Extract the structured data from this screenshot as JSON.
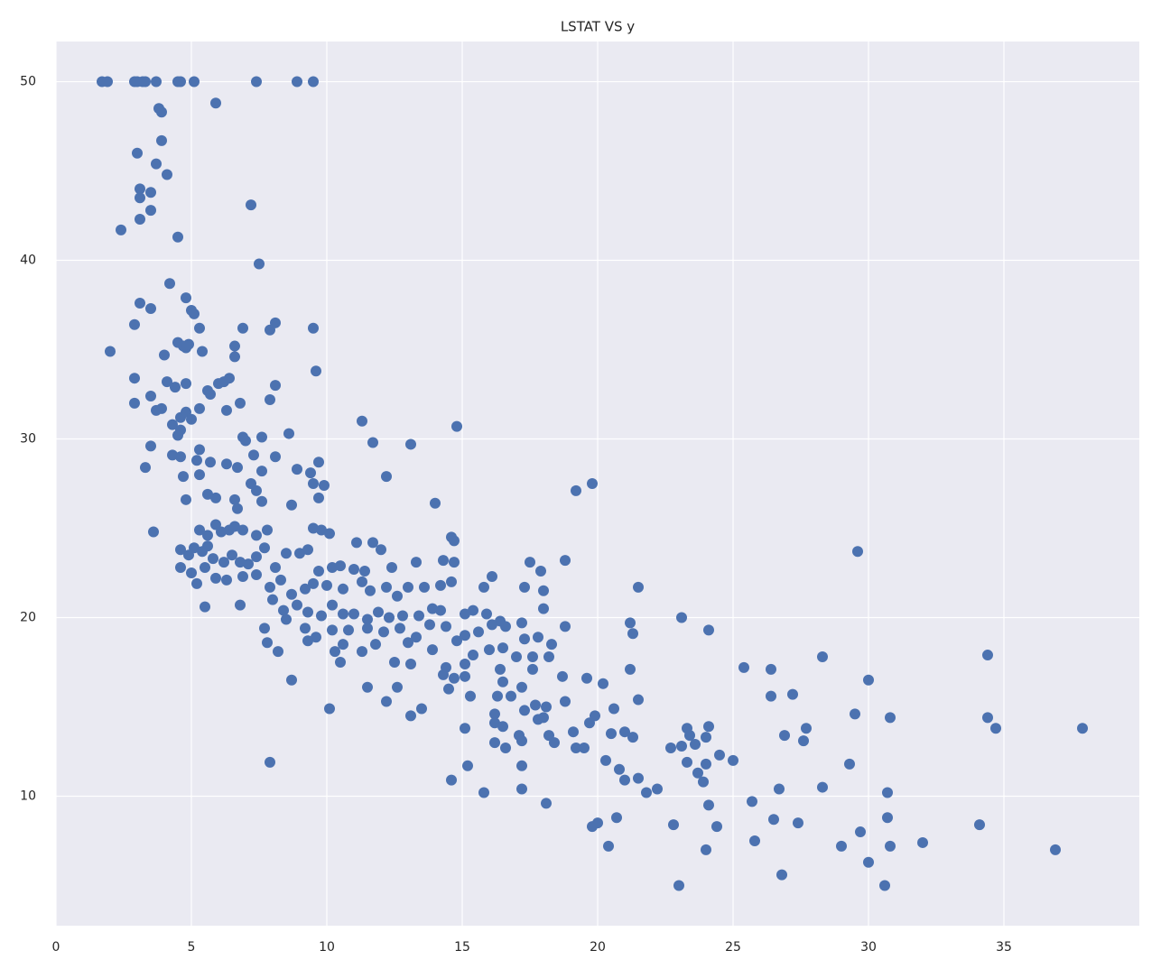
{
  "chart_data": {
    "type": "scatter",
    "title": "LSTAT VS y",
    "color": "#4c72b0",
    "grid": true,
    "xlim": [
      0,
      40
    ],
    "xticks": [
      0,
      5,
      10,
      15,
      20,
      25,
      30,
      35
    ],
    "ylim": [
      2.75,
      52.25
    ],
    "yticks": [
      10,
      20,
      30,
      40,
      50
    ],
    "x": [
      1.7,
      1.9,
      2.9,
      3.0,
      3.2,
      3.3,
      3.7,
      4.5,
      4.6,
      5.1,
      7.4,
      8.9,
      9.5,
      3.8,
      3.9,
      5.9,
      3.9,
      3.0,
      3.7,
      4.1,
      3.1,
      3.1,
      3.5,
      3.5,
      3.1,
      7.2,
      2.4,
      4.5,
      7.5,
      4.2,
      4.8,
      3.1,
      5.0,
      5.1,
      3.5,
      2.9,
      5.3,
      6.9,
      7.9,
      8.1,
      9.5,
      2.0,
      4.0,
      4.5,
      4.7,
      4.8,
      4.9,
      5.4,
      6.6,
      6.6,
      9.6,
      2.9,
      4.1,
      4.4,
      4.8,
      5.6,
      5.7,
      6.0,
      6.2,
      6.4,
      8.1,
      3.5,
      2.9,
      6.3,
      6.8,
      7.9,
      3.7,
      3.9,
      4.6,
      4.8,
      5.0,
      5.3,
      4.3,
      4.5,
      4.6,
      6.9,
      7.0,
      7.6,
      8.6,
      11.3,
      14.8,
      3.5,
      4.3,
      4.6,
      5.3,
      5.2,
      5.7,
      6.3,
      6.7,
      7.3,
      8.1,
      9.4,
      9.7,
      11.7,
      13.1,
      3.3,
      4.7,
      5.3,
      7.6,
      8.9,
      9.5,
      9.9,
      12.2,
      7.2,
      7.4,
      4.8,
      5.9,
      6.6,
      6.7,
      7.6,
      8.7,
      9.7,
      5.6,
      14.0,
      19.2,
      19.8,
      3.6,
      5.3,
      5.6,
      5.9,
      6.1,
      6.4,
      6.6,
      6.9,
      7.4,
      7.8,
      9.5,
      9.8,
      10.1,
      11.1,
      11.7,
      14.6,
      14.7,
      4.6,
      4.9,
      5.1,
      5.4,
      5.6,
      5.8,
      6.2,
      6.5,
      6.8,
      7.1,
      7.4,
      7.7,
      8.1,
      8.5,
      9.0,
      9.3,
      9.7,
      10.2,
      10.5,
      11.0,
      11.4,
      12.0,
      12.4,
      13.3,
      14.3,
      14.7,
      17.5,
      17.9,
      18.8,
      29.6,
      4.6,
      5.0,
      5.5,
      5.9,
      6.3,
      6.9,
      7.4,
      7.9,
      8.3,
      8.7,
      9.2,
      9.5,
      10.0,
      10.6,
      11.3,
      11.6,
      12.2,
      12.6,
      13.0,
      13.6,
      14.2,
      14.6,
      15.8,
      16.1,
      17.3,
      18.0,
      21.5,
      5.2,
      5.5,
      6.8,
      8.0,
      8.4,
      8.9,
      9.3,
      9.8,
      10.2,
      10.6,
      11.0,
      11.5,
      11.9,
      12.3,
      12.8,
      13.4,
      13.9,
      14.2,
      15.1,
      15.4,
      15.9,
      16.4,
      17.2,
      18.0,
      21.2,
      23.1,
      24.1,
      7.7,
      8.5,
      9.2,
      9.6,
      10.2,
      10.8,
      11.5,
      12.1,
      12.7,
      13.3,
      13.8,
      14.4,
      15.1,
      15.6,
      16.1,
      16.6,
      17.3,
      17.8,
      18.3,
      18.8,
      21.3,
      7.8,
      8.2,
      9.3,
      10.3,
      10.6,
      11.3,
      11.8,
      13.0,
      13.9,
      14.8,
      15.4,
      16.0,
      16.5,
      17.0,
      17.6,
      18.2,
      10.5,
      12.5,
      13.1,
      14.4,
      15.1,
      16.4,
      17.6,
      21.2,
      25.4,
      26.4,
      28.3,
      34.4,
      8.7,
      11.5,
      12.6,
      14.3,
      14.7,
      15.1,
      16.5,
      17.2,
      18.7,
      19.6,
      20.2,
      30.0,
      14.5,
      15.3,
      16.3,
      16.8,
      17.7,
      18.1,
      18.8,
      21.5,
      26.4,
      27.2,
      12.2,
      10.1,
      13.1,
      13.5,
      16.2,
      17.3,
      18.0,
      19.9,
      20.6,
      29.5,
      30.8,
      34.4,
      16.2,
      17.8,
      19.7,
      15.1,
      16.5,
      17.1,
      18.2,
      19.1,
      20.5,
      21.0,
      21.3,
      23.3,
      24.1,
      26.9,
      27.7,
      27.6,
      34.7,
      37.9,
      16.2,
      16.6,
      17.2,
      18.4,
      19.2,
      19.5,
      20.3,
      22.7,
      23.1,
      23.4,
      23.6,
      24.0,
      24.5,
      25.0,
      15.2,
      17.2,
      20.8,
      23.3,
      23.7,
      24.0,
      29.3,
      7.9,
      14.6,
      15.8,
      17.2,
      18.1,
      21.0,
      21.5,
      21.8,
      22.2,
      23.9,
      25.7,
      26.7,
      28.3,
      30.7,
      19.8,
      20.0,
      20.7,
      20.4,
      22.8,
      24.1,
      24.4,
      25.8,
      26.5,
      27.4,
      29.0,
      29.7,
      30.7,
      30.8,
      32.0,
      34.1,
      36.9,
      24.0,
      26.8,
      23.0,
      30.0,
      30.6
    ],
    "values": [
      50,
      50,
      50,
      50,
      50,
      50,
      50,
      50,
      50,
      50,
      50,
      50,
      50,
      48.5,
      48.3,
      48.8,
      46.7,
      46.0,
      45.4,
      44.8,
      44.0,
      43.5,
      43.8,
      42.8,
      42.3,
      43.1,
      41.7,
      41.3,
      39.8,
      38.7,
      37.9,
      37.6,
      37.2,
      37.0,
      37.3,
      36.4,
      36.2,
      36.2,
      36.1,
      36.5,
      36.2,
      34.9,
      34.7,
      35.4,
      35.2,
      35.1,
      35.3,
      34.9,
      35.2,
      34.6,
      33.8,
      33.4,
      33.2,
      32.9,
      33.1,
      32.7,
      32.5,
      33.1,
      33.2,
      33.4,
      33.0,
      32.4,
      32.0,
      31.6,
      32.0,
      32.2,
      31.6,
      31.7,
      31.2,
      31.5,
      31.1,
      31.7,
      30.8,
      30.2,
      30.5,
      30.1,
      29.9,
      30.1,
      30.3,
      31.0,
      30.7,
      29.6,
      29.1,
      29.0,
      29.4,
      28.8,
      28.7,
      28.6,
      28.4,
      29.1,
      29.0,
      28.1,
      28.7,
      29.8,
      29.7,
      28.4,
      27.9,
      28.0,
      28.2,
      28.3,
      27.5,
      27.4,
      27.9,
      27.5,
      27.1,
      26.6,
      26.7,
      26.6,
      26.1,
      26.5,
      26.3,
      26.7,
      26.9,
      26.4,
      27.1,
      27.5,
      24.8,
      24.9,
      24.6,
      25.2,
      24.8,
      24.9,
      25.1,
      24.9,
      24.6,
      24.9,
      25.0,
      24.9,
      24.7,
      24.2,
      24.2,
      24.5,
      24.3,
      23.8,
      23.5,
      23.9,
      23.7,
      24.0,
      23.3,
      23.1,
      23.5,
      23.1,
      23.0,
      23.4,
      23.9,
      22.8,
      23.6,
      23.6,
      23.8,
      22.6,
      22.8,
      22.9,
      22.7,
      22.6,
      23.8,
      22.8,
      23.1,
      23.2,
      23.1,
      23.1,
      22.6,
      23.2,
      23.7,
      22.8,
      22.5,
      22.8,
      22.2,
      22.1,
      22.3,
      22.4,
      21.7,
      22.1,
      21.3,
      21.6,
      21.9,
      21.8,
      21.6,
      22.0,
      21.5,
      21.7,
      21.2,
      21.7,
      21.7,
      21.8,
      22.0,
      21.7,
      22.3,
      21.7,
      21.5,
      21.7,
      21.9,
      20.6,
      20.7,
      21.0,
      20.4,
      20.7,
      20.3,
      20.1,
      20.7,
      20.2,
      20.2,
      19.9,
      20.3,
      20.0,
      20.1,
      20.1,
      20.5,
      20.4,
      20.2,
      20.4,
      20.2,
      19.8,
      19.7,
      20.5,
      19.7,
      20.0,
      19.3,
      19.4,
      19.9,
      19.4,
      18.9,
      19.3,
      19.3,
      19.4,
      19.2,
      19.4,
      18.9,
      19.6,
      19.5,
      19.0,
      19.2,
      19.6,
      19.5,
      18.8,
      18.9,
      18.5,
      19.5,
      19.1,
      18.6,
      18.1,
      18.7,
      18.1,
      18.5,
      18.1,
      18.5,
      18.6,
      18.2,
      18.7,
      17.9,
      18.2,
      18.3,
      17.8,
      17.8,
      17.8,
      17.5,
      17.5,
      17.4,
      17.2,
      17.4,
      17.1,
      17.1,
      17.1,
      17.2,
      17.1,
      17.8,
      17.9,
      16.5,
      16.1,
      16.1,
      16.8,
      16.6,
      16.7,
      16.4,
      16.1,
      16.7,
      16.6,
      16.3,
      16.5,
      16.0,
      15.6,
      15.6,
      15.6,
      15.1,
      15.0,
      15.3,
      15.4,
      15.6,
      15.7,
      15.3,
      14.9,
      14.5,
      14.9,
      14.6,
      14.8,
      14.4,
      14.5,
      14.9,
      14.6,
      14.4,
      14.4,
      14.1,
      14.3,
      14.1,
      13.8,
      13.9,
      13.4,
      13.4,
      13.6,
      13.5,
      13.6,
      13.3,
      13.8,
      13.9,
      13.4,
      13.8,
      13.1,
      13.8,
      13.8,
      13.0,
      12.7,
      13.1,
      13.0,
      12.7,
      12.7,
      12.0,
      12.7,
      12.8,
      13.4,
      12.9,
      13.3,
      12.3,
      12.0,
      11.7,
      11.7,
      11.5,
      11.9,
      11.3,
      11.8,
      11.8,
      11.9,
      10.9,
      10.2,
      10.4,
      9.6,
      10.9,
      11.0,
      10.2,
      10.4,
      10.8,
      9.7,
      10.4,
      10.5,
      10.2,
      8.3,
      8.5,
      8.8,
      7.2,
      8.4,
      9.5,
      8.3,
      7.5,
      8.7,
      8.5,
      7.2,
      8.0,
      8.8,
      7.2,
      7.4,
      8.4,
      7.0,
      7.0,
      5.6,
      5.0,
      6.3,
      5.0
    ]
  }
}
